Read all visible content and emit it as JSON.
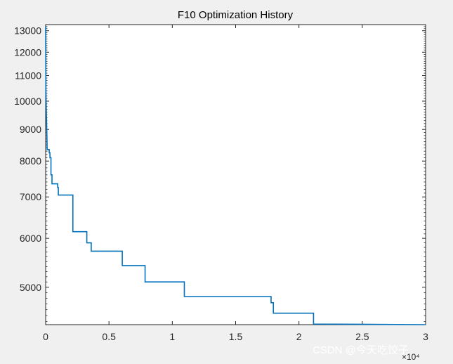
{
  "chart_data": {
    "type": "line",
    "title": "F10 Optimization History",
    "xlabel": "",
    "ylabel": "",
    "x_scale_label": "×10⁴",
    "y_scale": "log",
    "xlim": [
      0,
      30000
    ],
    "ylim": [
      4350,
      13300
    ],
    "xtick_labels": [
      "0",
      "0.5",
      "1",
      "1.5",
      "2",
      "2.5",
      "3"
    ],
    "xtick_values": [
      0,
      5000,
      10000,
      15000,
      20000,
      25000,
      30000
    ],
    "ytick_values": [
      5000,
      6000,
      7000,
      8000,
      9000,
      10000,
      11000,
      12000,
      13000
    ],
    "ytick_labels": [
      "5000",
      "6000",
      "7000",
      "8000",
      "9000",
      "10000",
      "11000",
      "12000",
      "13000"
    ],
    "grid": false,
    "series": [
      {
        "name": "",
        "color": "#0072bd",
        "points": [
          [
            0,
            13200
          ],
          [
            20,
            10400
          ],
          [
            60,
            9500
          ],
          [
            100,
            8800
          ],
          [
            120,
            8350
          ],
          [
            280,
            8350
          ],
          [
            280,
            8250
          ],
          [
            340,
            8250
          ],
          [
            340,
            8100
          ],
          [
            420,
            8100
          ],
          [
            420,
            7600
          ],
          [
            500,
            7600
          ],
          [
            500,
            7350
          ],
          [
            950,
            7350
          ],
          [
            950,
            7250
          ],
          [
            1000,
            7250
          ],
          [
            1000,
            7050
          ],
          [
            2150,
            7050
          ],
          [
            2150,
            6150
          ],
          [
            3250,
            6150
          ],
          [
            3250,
            5900
          ],
          [
            3600,
            5900
          ],
          [
            3600,
            5720
          ],
          [
            6050,
            5720
          ],
          [
            6050,
            5420
          ],
          [
            7850,
            5420
          ],
          [
            7850,
            5100
          ],
          [
            10950,
            5100
          ],
          [
            10950,
            4830
          ],
          [
            17800,
            4830
          ],
          [
            17800,
            4720
          ],
          [
            17980,
            4720
          ],
          [
            17980,
            4540
          ],
          [
            21150,
            4540
          ],
          [
            21150,
            4360
          ],
          [
            30000,
            4350
          ]
        ]
      }
    ]
  },
  "watermark": "CSDN @今天吃饺子"
}
